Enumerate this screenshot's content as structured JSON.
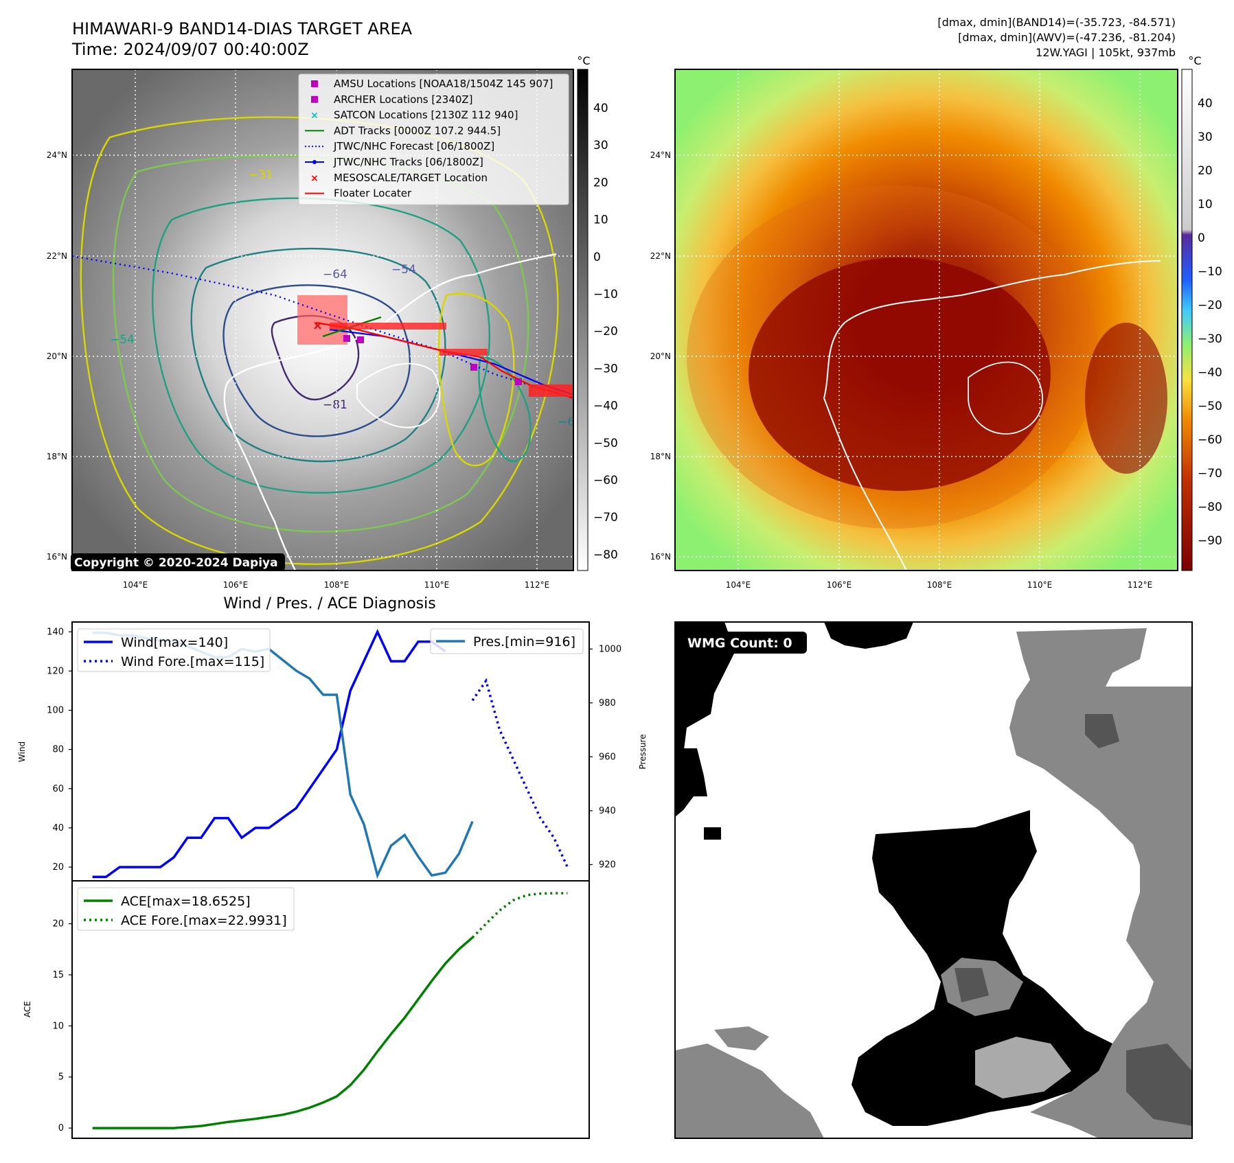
{
  "header": {
    "title": "HIMAWARI-9 BAND14-DIAS TARGET AREA",
    "time": "Time: 2024/09/07 00:40:00Z",
    "info1": "[dmax, dmin](BAND14)=(-35.723, -84.571)",
    "info2": "[dmax, dmin](AWV)=(-47.236, -81.204)",
    "info3": "12W.YAGI | 105kt, 937mb"
  },
  "map_axes": {
    "x_ticks": [
      "104°E",
      "106°E",
      "108°E",
      "110°E",
      "112°E"
    ],
    "y_ticks": [
      "24°N",
      "22°N",
      "20°N",
      "18°N",
      "16°N"
    ]
  },
  "colorbar_left": {
    "unit": "°C",
    "ticks": [
      "40",
      "30",
      "20",
      "10",
      "0",
      "−10",
      "−20",
      "−30",
      "−40",
      "−50",
      "−60",
      "−70",
      "−80"
    ]
  },
  "colorbar_right": {
    "unit": "°C",
    "ticks": [
      "40",
      "30",
      "20",
      "10",
      "0",
      "−10",
      "−20",
      "−30",
      "−40",
      "−50",
      "−60",
      "−70",
      "−80",
      "−90"
    ]
  },
  "legend_map": [
    {
      "label": "AMSU Locations [NOAA18/1504Z 145 907]",
      "marker": "square",
      "color": "#c000c0"
    },
    {
      "label": "ARCHER Locations [2340Z]",
      "marker": "square",
      "color": "#c000c0"
    },
    {
      "label": "SATCON Locations [2130Z 112 940]",
      "marker": "x",
      "color": "#00c0c0"
    },
    {
      "label": "ADT Tracks [0000Z 107.2 944.5]",
      "marker": "line",
      "color": "#008000"
    },
    {
      "label": "JTWC/NHC Forecast [06/1800Z]",
      "marker": "dotted",
      "color": "#0000ff"
    },
    {
      "label": "JTWC/NHC Tracks [06/1800Z]",
      "marker": "line-dot",
      "color": "#0000ff"
    },
    {
      "label": "MESOSCALE/TARGET Location",
      "marker": "x",
      "color": "#ff0000"
    },
    {
      "label": "Floater Locater",
      "marker": "line",
      "color": "#ff0000"
    }
  ],
  "contour_labels": [
    "−64",
    "−54",
    "−31",
    "−81"
  ],
  "copyright": "Copyright © 2020-2024 Dapiya",
  "wmg_label": "WMG Count: 0",
  "diag_title": "Wind / Pres. / ACE Diagnosis",
  "chart_data": [
    {
      "type": "line",
      "title": "Wind / Pres. / ACE Diagnosis",
      "ylabel": "Wind",
      "ylabel2": "Pressure",
      "ylim": [
        13,
        145
      ],
      "y2lim": [
        914,
        1010
      ],
      "x": [
        0,
        1,
        2,
        3,
        4,
        5,
        6,
        7,
        8,
        9,
        10,
        11,
        12,
        13,
        14,
        15,
        16,
        17,
        18,
        19,
        20,
        21,
        22,
        23,
        24,
        25,
        26,
        27,
        28,
        29,
        30,
        31,
        32,
        33,
        34,
        35
      ],
      "yticks": [
        "140",
        "120",
        "100",
        "80",
        "60",
        "40",
        "20"
      ],
      "y2ticks": [
        "1000",
        "980",
        "960",
        "940",
        "920"
      ],
      "series": [
        {
          "name": "Wind[max=140]",
          "axis": "left",
          "color": "#0000ff",
          "style": "solid",
          "x": [
            0,
            1,
            2,
            3,
            4,
            5,
            6,
            7,
            8,
            9,
            10,
            11,
            12,
            13,
            14,
            15,
            16,
            17,
            18,
            19,
            20,
            21,
            22,
            23,
            24,
            25,
            26
          ],
          "values": [
            15,
            15,
            20,
            20,
            20,
            20,
            25,
            35,
            35,
            45,
            45,
            35,
            40,
            40,
            45,
            50,
            60,
            70,
            80,
            110,
            125,
            140,
            125,
            125,
            135,
            135,
            130
          ]
        },
        {
          "name": "Wind Fore.[max=115]",
          "axis": "left",
          "color": "#0000ff",
          "style": "dotted",
          "x": [
            28,
            29,
            30,
            31,
            32,
            33,
            34,
            35
          ],
          "values": [
            105,
            115,
            90,
            75,
            60,
            45,
            35,
            20
          ]
        },
        {
          "name": "Pres.[min=916]",
          "axis": "right",
          "color": "#1f77b4",
          "style": "solid",
          "x": [
            0,
            1,
            2,
            3,
            4,
            5,
            6,
            7,
            8,
            9,
            10,
            11,
            12,
            13,
            14,
            15,
            16,
            17,
            18,
            19,
            20,
            21,
            22,
            23,
            24,
            25,
            26,
            27,
            28
          ],
          "values": [
            1006,
            1006,
            1005,
            1005,
            1004,
            1003,
            1003,
            1001,
            999,
            997,
            997,
            1000,
            999,
            1000,
            996,
            992,
            989,
            983,
            983,
            946,
            935,
            916,
            927,
            931,
            923,
            916,
            917,
            924,
            936
          ]
        }
      ]
    },
    {
      "type": "line",
      "ylabel": "ACE",
      "ylim": [
        -1,
        24.2
      ],
      "yticks": [
        "20",
        "15",
        "10",
        "5",
        "0"
      ],
      "series": [
        {
          "name": "ACE[max=18.6525]",
          "color": "#008000",
          "style": "solid",
          "x": [
            0,
            1,
            2,
            3,
            4,
            5,
            6,
            7,
            8,
            9,
            10,
            11,
            12,
            13,
            14,
            15,
            16,
            17,
            18,
            19,
            20,
            21,
            22,
            23,
            24,
            25,
            26,
            27,
            28
          ],
          "values": [
            0,
            0,
            0,
            0,
            0,
            0,
            0,
            0.1,
            0.2,
            0.4,
            0.6,
            0.75,
            0.9,
            1.1,
            1.3,
            1.6,
            2.0,
            2.5,
            3.1,
            4.2,
            5.7,
            7.5,
            9.2,
            10.8,
            12.6,
            14.4,
            16.1,
            17.5,
            18.65
          ]
        },
        {
          "name": "ACE Fore.[max=22.9931]",
          "color": "#008000",
          "style": "dotted",
          "x": [
            28,
            29,
            30,
            31,
            32,
            33,
            34,
            35
          ],
          "values": [
            18.65,
            20.0,
            21.3,
            22.3,
            22.8,
            22.95,
            22.99,
            22.99
          ]
        }
      ]
    }
  ]
}
